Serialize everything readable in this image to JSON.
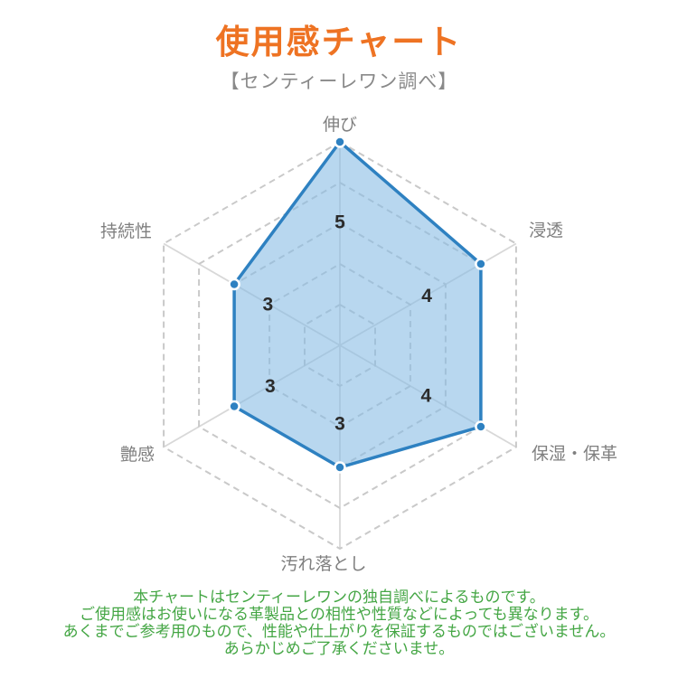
{
  "page": {
    "title": "使用感チャート",
    "subtitle": "【センティーレワン調べ】"
  },
  "chart_data": {
    "type": "radar",
    "title": "使用感チャート",
    "subtitle": "【センティーレワン調べ】",
    "categories": [
      "伸び",
      "浸透",
      "保湿・保革",
      "汚れ落とし",
      "艶感",
      "持続性"
    ],
    "values": [
      5,
      4,
      4,
      3,
      3,
      3
    ],
    "scale": {
      "min": 0,
      "max": 5,
      "ring_interval": 1
    },
    "grid": {
      "shape": "hexagon",
      "rings": "dashed",
      "spokes": "solid"
    },
    "legend": "none",
    "data_labels_shown": [
      "5",
      "4",
      "4",
      "3",
      "3",
      "3"
    ],
    "colors": {
      "fill": "#89bde5",
      "fill_opacity": 0.6,
      "stroke": "#2e81c1",
      "point_fill": "#2e81c1",
      "point_border": "#ffffff",
      "grid_ring": "#c9c9c9",
      "grid_spoke": "#d8d8d8",
      "value_label": "#2b2b2b",
      "axis_label": "#7f7f7f"
    }
  },
  "footer": {
    "color": "#44a644",
    "lines": [
      "本チャートはセンティーレワンの独自調べによるものです。",
      "ご使用感はお使いになる革製品との相性や性質などによっても異なります。",
      "あくまでご参考用のもので、性能や仕上がりを保証するものではございません。",
      "あらかじめご了承くださいませ。"
    ]
  },
  "colors": {
    "background": "#ffffff",
    "title": "#ee7323",
    "subtitle": "#898989"
  }
}
